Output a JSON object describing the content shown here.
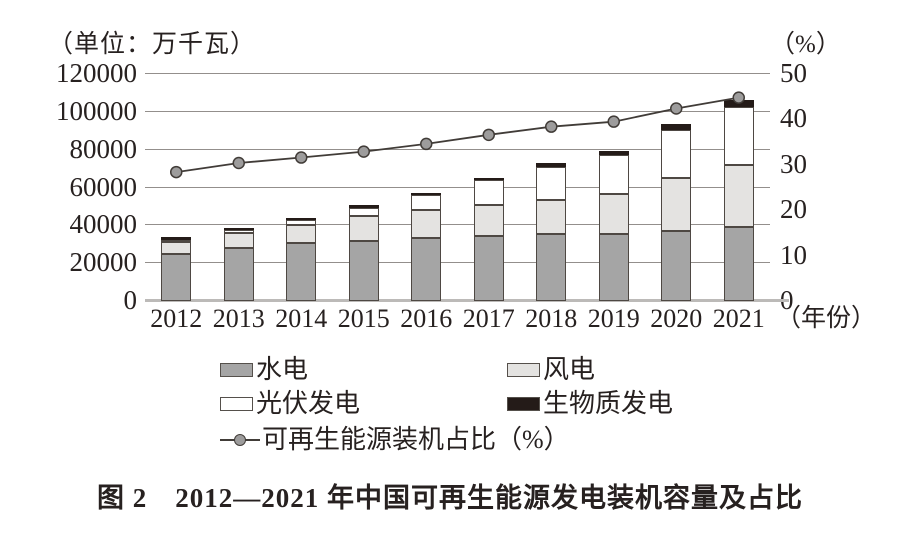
{
  "figure": {
    "unit_label": "（单位：万千瓦）",
    "right_axis_unit": "（%）",
    "x_axis_suffix": "（年份）",
    "caption": "图 2　2012—2021 年中国可再生能源发电装机容量及占比"
  },
  "legend": {
    "items": [
      {
        "key": "hydro",
        "label": "水电",
        "swatch": "#a5a5a5"
      },
      {
        "key": "wind",
        "label": "风电",
        "swatch": "#e4e3e1"
      },
      {
        "key": "solar",
        "label": "光伏发电",
        "swatch": "#ffffff"
      },
      {
        "key": "biomass",
        "label": "生物质发电",
        "swatch": "#241b18"
      },
      {
        "key": "share",
        "label": "可再生能源装机占比（%）",
        "type": "line-marker"
      }
    ]
  },
  "chart_data": {
    "type": "bar",
    "subtype": "stacked-bars-with-line",
    "title": "图 2　2012—2021 年中国可再生能源发电装机容量及占比",
    "categories": [
      "2012",
      "2013",
      "2014",
      "2015",
      "2016",
      "2017",
      "2018",
      "2019",
      "2020",
      "2021"
    ],
    "series": [
      {
        "name": "水电",
        "key": "hydro",
        "type": "bar",
        "stack": "capacity",
        "color": "#a5a5a5",
        "values": [
          24890,
          28044,
          30486,
          31954,
          33211,
          34411,
          35226,
          35640,
          37016,
          39092
        ]
      },
      {
        "name": "风电",
        "key": "wind",
        "type": "bar",
        "stack": "capacity",
        "color": "#e4e3e1",
        "values": [
          6142,
          7652,
          9657,
          13075,
          14864,
          16367,
          18426,
          21005,
          28153,
          32848
        ]
      },
      {
        "name": "光伏发电",
        "key": "solar",
        "type": "bar",
        "stack": "capacity",
        "color": "#ffffff",
        "values": [
          341,
          1589,
          2486,
          4318,
          7742,
          13025,
          17446,
          20468,
          25343,
          30656
        ]
      },
      {
        "name": "生物质发电",
        "key": "biomass",
        "type": "bar",
        "stack": "capacity",
        "color": "#241b18",
        "values": [
          580,
          850,
          950,
          1031,
          1214,
          1476,
          1781,
          2369,
          2952,
          3798
        ]
      },
      {
        "name": "可再生能源装机占比（%）",
        "key": "share",
        "type": "line",
        "axis": "right",
        "color": "#413c38",
        "marker_fill": "#9d9c9c",
        "values": [
          28.4,
          30.4,
          31.6,
          32.9,
          34.6,
          36.6,
          38.4,
          39.5,
          42.4,
          44.8
        ]
      }
    ],
    "left_axis": {
      "unit": "（单位：万千瓦）",
      "min": 0,
      "max": 120000,
      "ticks": [
        0,
        20000,
        40000,
        60000,
        80000,
        100000,
        120000
      ]
    },
    "right_axis": {
      "unit": "（%）",
      "min": 0,
      "max": 50,
      "ticks": [
        0,
        10,
        20,
        30,
        40,
        50
      ]
    },
    "x_axis": {
      "label": "（年份）"
    },
    "grid": true,
    "legend_position": "bottom"
  }
}
